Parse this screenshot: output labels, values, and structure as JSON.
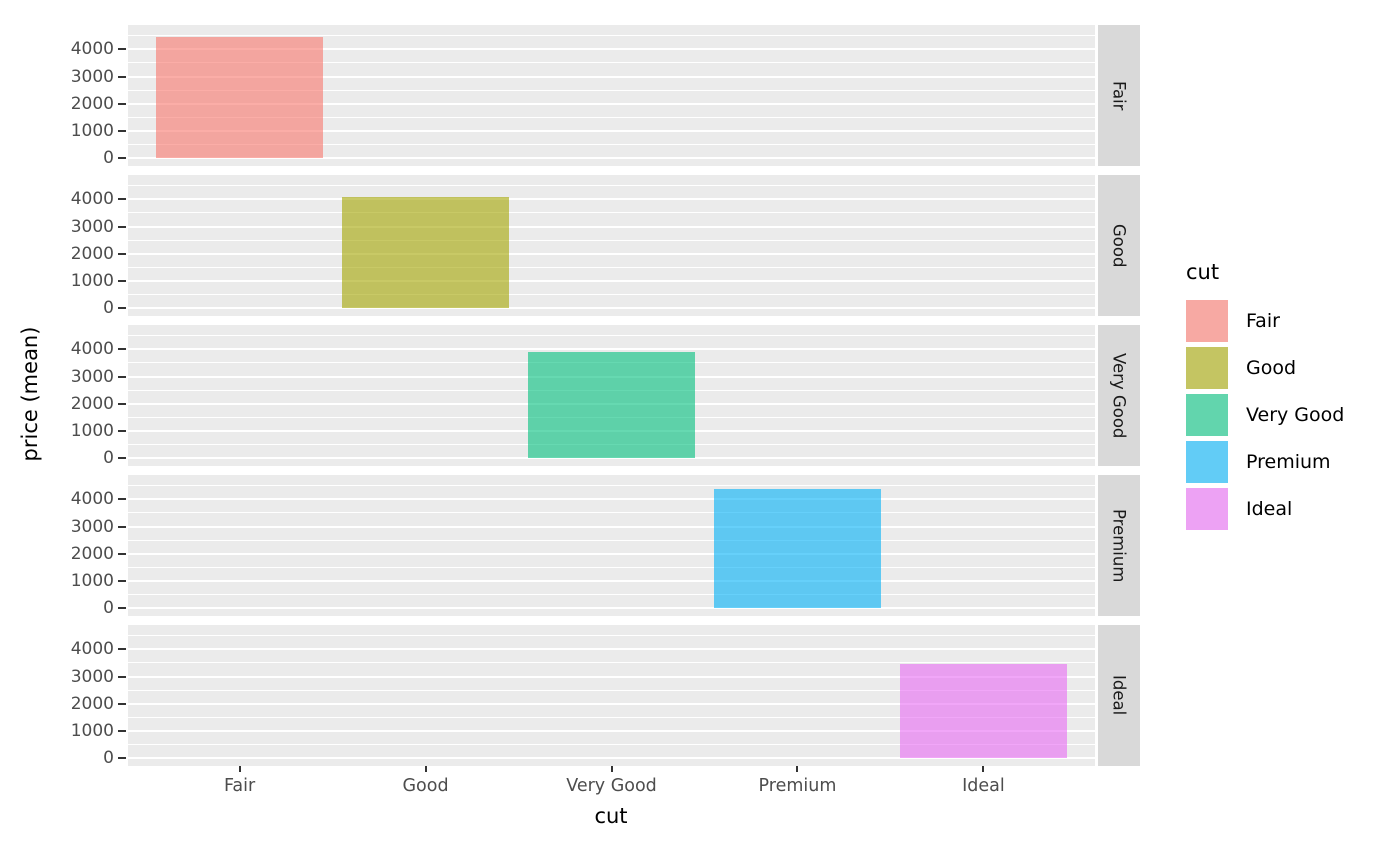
{
  "chart_data": {
    "type": "bar",
    "title": "",
    "xlabel": "cut",
    "ylabel": "price (mean)",
    "faceted": true,
    "facet_variable": "cut",
    "facet_labels": [
      "Fair",
      "Good",
      "Very Good",
      "Premium",
      "Ideal"
    ],
    "categories": [
      "Fair",
      "Good",
      "Very Good",
      "Premium",
      "Ideal"
    ],
    "values": [
      4450,
      4100,
      3900,
      4400,
      3450
    ],
    "x_tick_labels": [
      "Fair",
      "Good",
      "Very Good",
      "Premium",
      "Ideal"
    ],
    "y_tick_labels": [
      "0",
      "1000",
      "2000",
      "3000",
      "4000"
    ],
    "y_tick_values": [
      0,
      1000,
      2000,
      3000,
      4000
    ],
    "ylim": [
      -300,
      4900
    ],
    "grid": {
      "major": [
        0,
        1000,
        2000,
        3000,
        4000
      ],
      "minor": [
        500,
        1500,
        2500,
        3500,
        4500
      ],
      "color": "#FFFFFF"
    },
    "legend": {
      "title": "cut",
      "position": "right",
      "entries": [
        {
          "label": "Fair",
          "fill": "rgba(248,118,109,0.6)",
          "base_color": "#F8766D"
        },
        {
          "label": "Good",
          "fill": "rgba(163,165,0,0.6)",
          "base_color": "#A3A500"
        },
        {
          "label": "Very Good",
          "fill": "rgba(0,191,125,0.6)",
          "base_color": "#00BF7D"
        },
        {
          "label": "Premium",
          "fill": "rgba(0,176,246,0.6)",
          "base_color": "#00B0F6"
        },
        {
          "label": "Ideal",
          "fill": "rgba(231,107,243,0.6)",
          "base_color": "#E76BF3"
        }
      ]
    },
    "colors": {
      "panel_background": "#EBEBEB",
      "strip_background": "#D9D9D9",
      "strip_text": "#1A1A1A",
      "tick_text": "#4D4D4D",
      "axis_title_text": "#000000",
      "gridline": "#FFFFFF"
    }
  }
}
